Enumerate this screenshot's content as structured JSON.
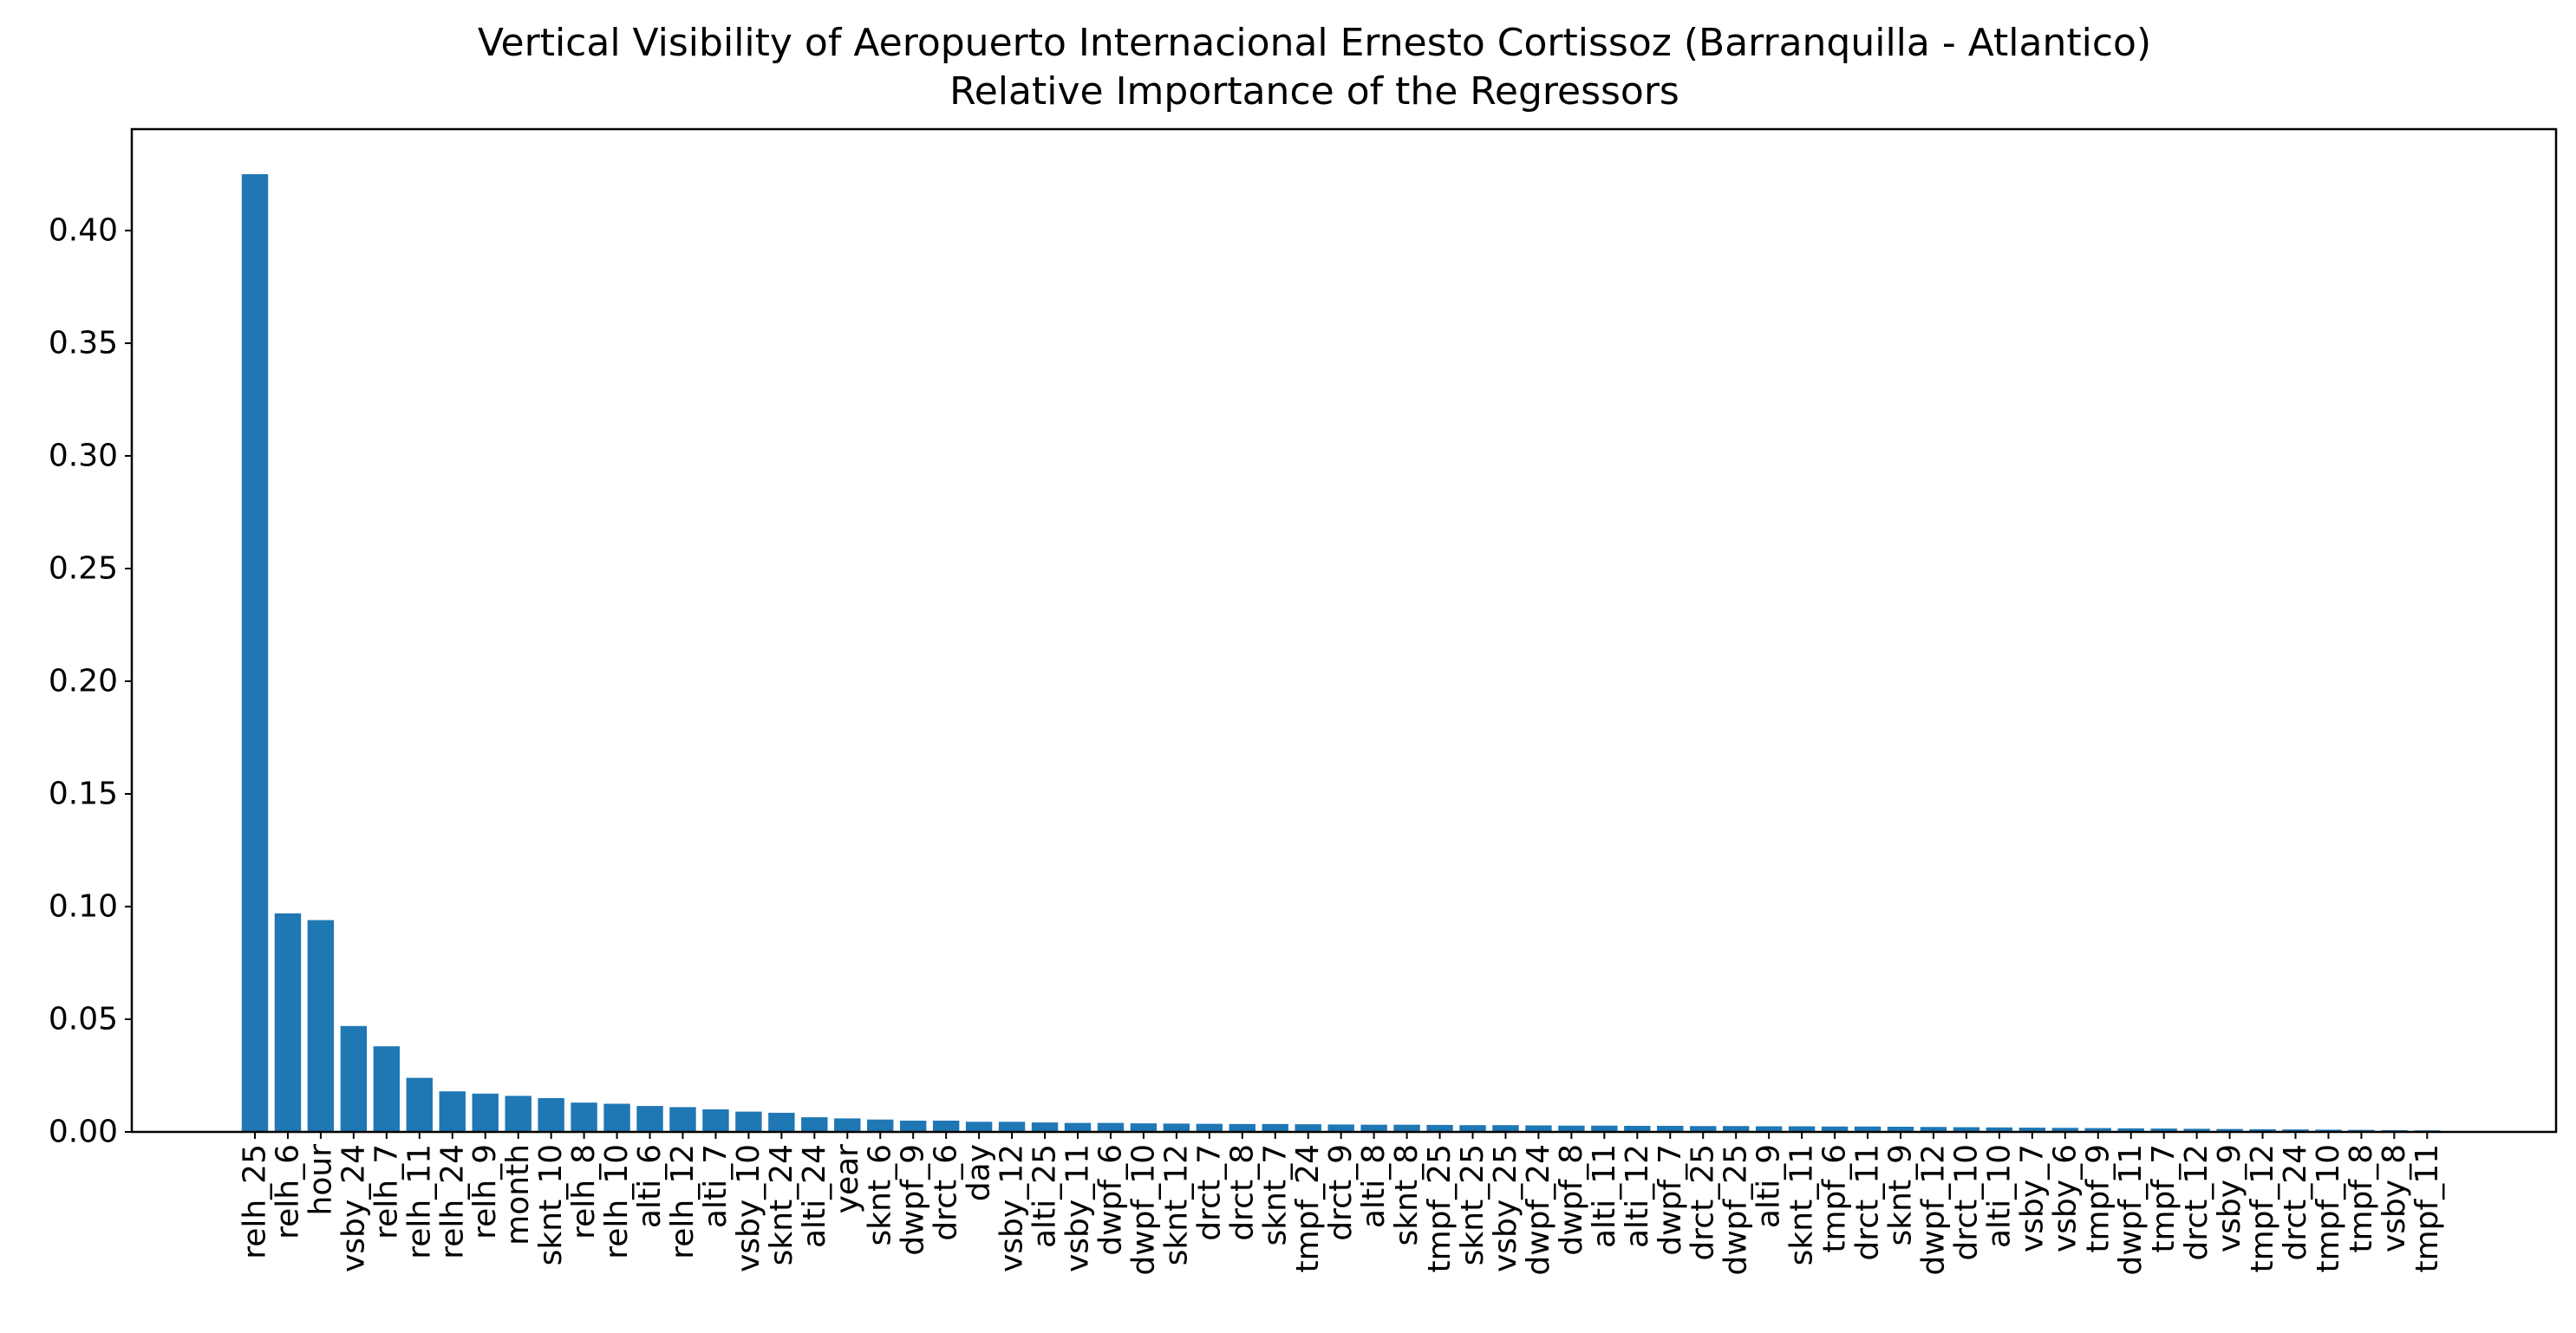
{
  "chart_data": {
    "type": "bar",
    "title": "Vertical Visibility of Aeropuerto Internacional Ernesto Cortissoz (Barranquilla - Atlantico)",
    "subtitle": "Relative Importance of the Regressors",
    "xlabel": "",
    "ylabel": "",
    "ylim": [
      0,
      0.445
    ],
    "yticks": [
      "0.00",
      "0.05",
      "0.10",
      "0.15",
      "0.20",
      "0.25",
      "0.30",
      "0.35",
      "0.40"
    ],
    "bar_color": "#1f77b4",
    "grid": false,
    "categories": [
      "relh_25",
      "relh_6",
      "hour",
      "vsby_24",
      "relh_7",
      "relh_11",
      "relh_24",
      "relh_9",
      "month",
      "sknt_10",
      "relh_8",
      "relh_10",
      "alti_6",
      "relh_12",
      "alti_7",
      "vsby_10",
      "sknt_24",
      "alti_24",
      "year",
      "sknt_6",
      "dwpf_9",
      "drct_6",
      "day",
      "vsby_12",
      "alti_25",
      "vsby_11",
      "dwpf_6",
      "dwpf_10",
      "sknt_12",
      "drct_7",
      "drct_8",
      "sknt_7",
      "tmpf_24",
      "drct_9",
      "alti_8",
      "sknt_8",
      "tmpf_25",
      "sknt_25",
      "vsby_25",
      "dwpf_24",
      "dwpf_8",
      "alti_11",
      "alti_12",
      "dwpf_7",
      "drct_25",
      "dwpf_25",
      "alti_9",
      "sknt_11",
      "tmpf_6",
      "drct_11",
      "sknt_9",
      "dwpf_12",
      "drct_10",
      "alti_10",
      "vsby_7",
      "vsby_6",
      "tmpf_9",
      "dwpf_11",
      "tmpf_7",
      "drct_12",
      "vsby_9",
      "tmpf_12",
      "drct_24",
      "tmpf_10",
      "tmpf_8",
      "vsby_8",
      "tmpf_11"
    ],
    "values": [
      0.425,
      0.097,
      0.094,
      0.047,
      0.038,
      0.024,
      0.018,
      0.017,
      0.016,
      0.015,
      0.013,
      0.0125,
      0.0115,
      0.011,
      0.01,
      0.009,
      0.0085,
      0.0065,
      0.006,
      0.0055,
      0.005,
      0.005,
      0.0045,
      0.0045,
      0.0042,
      0.004,
      0.004,
      0.0038,
      0.0037,
      0.0036,
      0.0035,
      0.0035,
      0.0034,
      0.0033,
      0.0032,
      0.0032,
      0.0031,
      0.003,
      0.003,
      0.0029,
      0.0028,
      0.0028,
      0.0027,
      0.0027,
      0.0026,
      0.0026,
      0.0025,
      0.0025,
      0.0024,
      0.0024,
      0.0023,
      0.0022,
      0.0021,
      0.002,
      0.0019,
      0.0018,
      0.0017,
      0.0016,
      0.0015,
      0.0014,
      0.0013,
      0.0012,
      0.0011,
      0.001,
      0.0009,
      0.0008,
      0.0007
    ]
  }
}
